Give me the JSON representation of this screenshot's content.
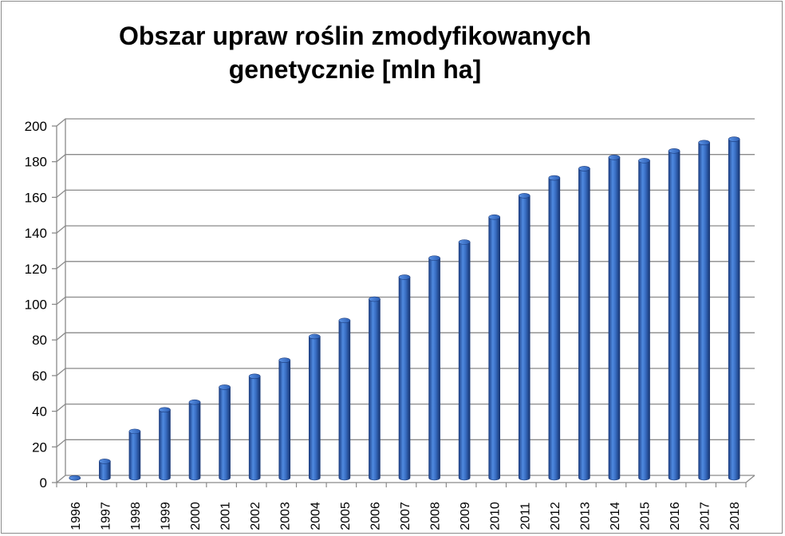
{
  "chart_data": {
    "type": "bar",
    "title": "Obszar upraw roślin zmodyfikowanych genetycznie [mln ha]",
    "title_lines": [
      "Obszar upraw roślin zmodyfikowanych",
      "genetycznie [mln ha]"
    ],
    "categories": [
      "1996",
      "1997",
      "1998",
      "1999",
      "2000",
      "2001",
      "2002",
      "2003",
      "2004",
      "2005",
      "2006",
      "2007",
      "2008",
      "2009",
      "2010",
      "2011",
      "2012",
      "2013",
      "2014",
      "2015",
      "2016",
      "2017",
      "2018"
    ],
    "values": [
      1.7,
      11,
      27.8,
      39.9,
      44.2,
      52.6,
      58.7,
      67.7,
      81,
      90,
      102,
      114.3,
      125,
      134,
      148,
      160,
      170,
      175.2,
      181.5,
      179.7,
      185.1,
      189.8,
      191.7
    ],
    "y_ticks": [
      "0",
      "20",
      "40",
      "60",
      "80",
      "100",
      "120",
      "140",
      "160",
      "180",
      "200"
    ],
    "ylim": [
      0,
      200
    ],
    "grid": true,
    "legend": "none",
    "bar_color": "#3a6fc4"
  }
}
